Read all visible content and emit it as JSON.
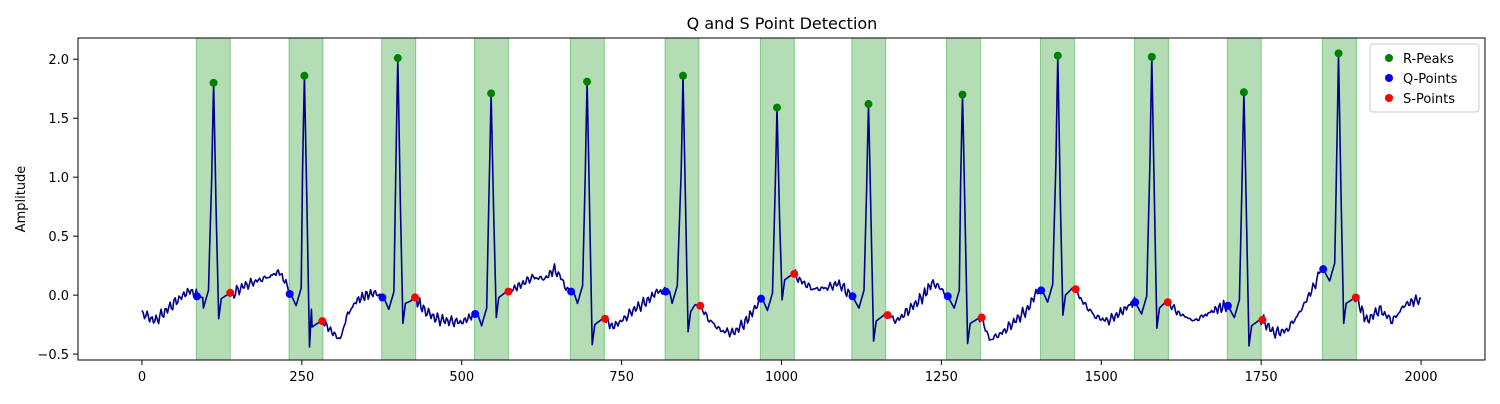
{
  "chart_data": {
    "type": "line",
    "title": "Q and S Point Detection",
    "xlabel": "",
    "ylabel": "Amplitude",
    "xlim": [
      -100,
      2100
    ],
    "ylim": [
      -0.55,
      2.18
    ],
    "xticks": [
      0,
      250,
      500,
      750,
      1000,
      1250,
      1500,
      1750,
      2000
    ],
    "xtick_labels": [
      "0",
      "250",
      "500",
      "750",
      "1000",
      "1250",
      "1500",
      "1750",
      "2000"
    ],
    "yticks": [
      -0.5,
      0.0,
      0.5,
      1.0,
      1.5,
      2.0
    ],
    "ytick_labels": [
      "−0.5",
      "0.0",
      "0.5",
      "1.0",
      "1.5",
      "2.0"
    ],
    "grid": false,
    "legend_placement": "top-right",
    "legend": [
      "R-Peaks",
      "Q-Points",
      "S-Points"
    ],
    "colors": {
      "signal": "#00008b",
      "r_peaks": "#008000",
      "q_points": "#0000ff",
      "s_points": "#ff0000",
      "qrs_region": "#4caf50"
    },
    "signal": {
      "x_range": [
        0,
        2000
      ],
      "baseline": [
        [
          0,
          -0.15
        ],
        [
          20,
          -0.22
        ],
        [
          40,
          -0.12
        ],
        [
          60,
          -0.02
        ],
        [
          75,
          0.04
        ],
        [
          85,
          0.0
        ],
        [
          95,
          -0.02
        ],
        [
          140,
          0.0
        ],
        [
          160,
          0.08
        ],
        [
          180,
          0.12
        ],
        [
          200,
          0.16
        ],
        [
          215,
          0.2
        ],
        [
          225,
          0.1
        ],
        [
          232,
          0.02
        ],
        [
          265,
          -0.12
        ],
        [
          280,
          -0.22
        ],
        [
          295,
          -0.3
        ],
        [
          310,
          -0.38
        ],
        [
          320,
          -0.18
        ],
        [
          335,
          -0.05
        ],
        [
          350,
          -0.0
        ],
        [
          365,
          0.02
        ],
        [
          378,
          -0.02
        ],
        [
          420,
          -0.05
        ],
        [
          440,
          -0.12
        ],
        [
          460,
          -0.2
        ],
        [
          480,
          -0.22
        ],
        [
          500,
          -0.23
        ],
        [
          515,
          -0.18
        ],
        [
          525,
          -0.16
        ],
        [
          570,
          0.03
        ],
        [
          590,
          0.08
        ],
        [
          610,
          0.15
        ],
        [
          630,
          0.14
        ],
        [
          645,
          0.22
        ],
        [
          655,
          0.15
        ],
        [
          665,
          0.04
        ],
        [
          675,
          0.03
        ],
        [
          720,
          -0.2
        ],
        [
          735,
          -0.27
        ],
        [
          750,
          -0.22
        ],
        [
          770,
          -0.12
        ],
        [
          790,
          -0.05
        ],
        [
          805,
          0.03
        ],
        [
          825,
          0.03
        ],
        [
          865,
          -0.08
        ],
        [
          885,
          -0.2
        ],
        [
          905,
          -0.3
        ],
        [
          925,
          -0.32
        ],
        [
          945,
          -0.22
        ],
        [
          960,
          -0.1
        ],
        [
          970,
          -0.03
        ],
        [
          1018,
          0.18
        ],
        [
          1030,
          0.12
        ],
        [
          1050,
          0.05
        ],
        [
          1070,
          0.06
        ],
        [
          1090,
          0.1
        ],
        [
          1100,
          0.04
        ],
        [
          1108,
          -0.0
        ],
        [
          1160,
          -0.17
        ],
        [
          1180,
          -0.22
        ],
        [
          1200,
          -0.12
        ],
        [
          1220,
          -0.02
        ],
        [
          1235,
          0.1
        ],
        [
          1245,
          0.08
        ],
        [
          1258,
          -0.0
        ],
        [
          1310,
          -0.19
        ],
        [
          1325,
          -0.38
        ],
        [
          1345,
          -0.32
        ],
        [
          1365,
          -0.22
        ],
        [
          1385,
          -0.12
        ],
        [
          1398,
          0.02
        ],
        [
          1408,
          0.04
        ],
        [
          1455,
          0.06
        ],
        [
          1470,
          -0.05
        ],
        [
          1490,
          -0.18
        ],
        [
          1510,
          -0.22
        ],
        [
          1530,
          -0.15
        ],
        [
          1545,
          -0.08
        ],
        [
          1552,
          -0.06
        ],
        [
          1602,
          -0.05
        ],
        [
          1620,
          -0.15
        ],
        [
          1645,
          -0.22
        ],
        [
          1665,
          -0.16
        ],
        [
          1680,
          -0.12
        ],
        [
          1695,
          -0.09
        ],
        [
          1750,
          -0.2
        ],
        [
          1770,
          -0.32
        ],
        [
          1790,
          -0.3
        ],
        [
          1810,
          -0.15
        ],
        [
          1825,
          0.0
        ],
        [
          1835,
          0.1
        ],
        [
          1843,
          0.22
        ],
        [
          1897,
          -0.02
        ],
        [
          1915,
          -0.22
        ],
        [
          1935,
          -0.12
        ],
        [
          1955,
          -0.22
        ],
        [
          1975,
          -0.08
        ],
        [
          1990,
          -0.05
        ],
        [
          2000,
          -0.03
        ]
      ]
    },
    "series": [
      {
        "name": "R-Peaks",
        "x": [
          112,
          254,
          400,
          546,
          696,
          846,
          993,
          1136,
          1283,
          1432,
          1579,
          1723,
          1871
        ],
        "y": [
          1.8,
          1.86,
          2.01,
          1.71,
          1.81,
          1.86,
          1.59,
          1.62,
          1.7,
          2.03,
          2.02,
          1.72,
          2.05
        ]
      },
      {
        "name": "Q-Points",
        "x": [
          86,
          231,
          376,
          521,
          671,
          819,
          968,
          1111,
          1260,
          1406,
          1553,
          1698,
          1847
        ],
        "y": [
          -0.01,
          0.01,
          -0.02,
          -0.16,
          0.03,
          0.03,
          -0.03,
          -0.01,
          -0.01,
          0.04,
          -0.06,
          -0.09,
          0.22
        ]
      },
      {
        "name": "S-Points",
        "x": [
          138,
          282,
          427,
          573,
          724,
          873,
          1020,
          1166,
          1313,
          1460,
          1604,
          1752,
          1898
        ],
        "y": [
          0.02,
          -0.22,
          -0.02,
          0.03,
          -0.2,
          -0.09,
          0.18,
          -0.17,
          -0.19,
          0.05,
          -0.06,
          -0.21,
          -0.02
        ]
      }
    ],
    "qrs_regions": [
      [
        85,
        138
      ],
      [
        230,
        283
      ],
      [
        375,
        428
      ],
      [
        520,
        573
      ],
      [
        670,
        723
      ],
      [
        818,
        871
      ],
      [
        967,
        1020
      ],
      [
        1110,
        1163
      ],
      [
        1258,
        1311
      ],
      [
        1405,
        1458
      ],
      [
        1552,
        1605
      ],
      [
        1697,
        1750
      ],
      [
        1846,
        1899
      ]
    ]
  }
}
